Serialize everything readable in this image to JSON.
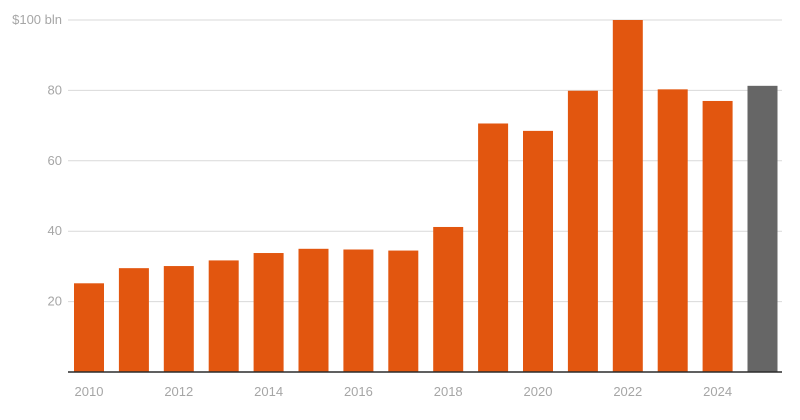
{
  "chart_data": {
    "type": "bar",
    "title": "",
    "xlabel": "",
    "ylabel": "",
    "ylim": [
      0,
      100
    ],
    "y_ticks": [
      20,
      40,
      60,
      80,
      100
    ],
    "y_tick_labels": [
      "20",
      "40",
      "60",
      "80",
      "$100 bln"
    ],
    "x_tick_labels": [
      "2010",
      "2012",
      "2014",
      "2016",
      "2018",
      "2020",
      "2022",
      "2024"
    ],
    "categories": [
      2010,
      2011,
      2012,
      2013,
      2014,
      2015,
      2016,
      2017,
      2018,
      2019,
      2020,
      2021,
      2022,
      2023,
      2024,
      2025
    ],
    "values": [
      25.2,
      29.5,
      30.1,
      31.7,
      33.8,
      35.0,
      34.8,
      34.5,
      41.2,
      70.6,
      68.5,
      79.9,
      100.0,
      80.3,
      77.0,
      81.3
    ],
    "bar_colors": [
      "#e2560f",
      "#e2560f",
      "#e2560f",
      "#e2560f",
      "#e2560f",
      "#e2560f",
      "#e2560f",
      "#e2560f",
      "#e2560f",
      "#e2560f",
      "#e2560f",
      "#e2560f",
      "#e2560f",
      "#e2560f",
      "#e2560f",
      "#666666"
    ],
    "grid": true
  }
}
